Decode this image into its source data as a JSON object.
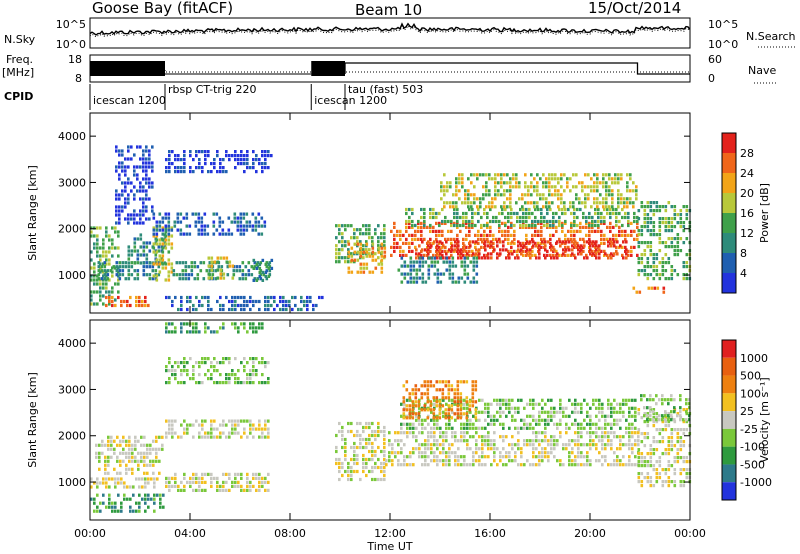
{
  "chart_data": {
    "type": "heatmap",
    "title": {
      "station": "Goose Bay (fitACF)",
      "beam": "Beam 10",
      "date": "15/Oct/2014"
    },
    "x_axis": {
      "label": "Time UT",
      "range_hours": [
        0,
        24
      ],
      "ticks": [
        {
          "value": 0,
          "label": "00:00"
        },
        {
          "value": 4,
          "label": "04:00"
        },
        {
          "value": 8,
          "label": "08:00"
        },
        {
          "value": 12,
          "label": "12:00"
        },
        {
          "value": 16,
          "label": "16:00"
        },
        {
          "value": 20,
          "label": "20:00"
        },
        {
          "value": 24,
          "label": "00:00"
        }
      ]
    },
    "noise_panel": {
      "left_label": "N.Sky",
      "right_label": "N.Search",
      "left_ticks": [
        "10^5",
        "10^0"
      ],
      "right_ticks": [
        "10^5",
        "10^0"
      ]
    },
    "freq_panel": {
      "left_label_line1": "Freq.",
      "left_label_line2": "[MHz]",
      "right_label": "Nave",
      "left_ticks": [
        "18",
        "8"
      ],
      "right_ticks": [
        "60",
        "0"
      ]
    },
    "cpid_panel": {
      "label": "CPID",
      "segments": [
        {
          "start": 0.0,
          "end": 3.0,
          "label": "icescan 1200"
        },
        {
          "start": 3.0,
          "end": 8.85,
          "label": "rbsp CT-trig 220"
        },
        {
          "start": 8.85,
          "end": 10.2,
          "label": "icescan 1200"
        },
        {
          "start": 10.2,
          "end": 24.0,
          "label": "tau (fast) 503"
        }
      ]
    },
    "panels": [
      {
        "name": "power",
        "ylabel": "Slant Range [km]",
        "ylim": [
          180,
          4500
        ],
        "yticks": [
          1000,
          2000,
          3000,
          4000
        ],
        "colorbar_label": "Power [dB]",
        "colorbar_ticks": [
          "4",
          "8",
          "12",
          "16",
          "20",
          "24",
          "28"
        ],
        "colors": [
          "#2233dd",
          "#1f5fb0",
          "#2e8b7a",
          "#3fa04a",
          "#b8c83a",
          "#f2a418",
          "#f0661a",
          "#e3221c"
        ]
      },
      {
        "name": "velocity",
        "ylabel": "Slant Range [km]",
        "ylim": [
          180,
          4500
        ],
        "yticks": [
          1000,
          2000,
          3000,
          4000
        ],
        "colorbar_label": "Velocity [m s⁻¹]",
        "colorbar_ticks": [
          "1000",
          "500",
          "100",
          "25",
          "-25",
          "-100",
          "-500",
          "-1000"
        ],
        "colors": [
          "#2233dd",
          "#2d7a8a",
          "#2e9a3e",
          "#7ac83a",
          "#c8c8c0",
          "#f2c020",
          "#ee8010",
          "#e86010",
          "#e02020"
        ]
      }
    ],
    "features": [
      {
        "panel": "power",
        "t0": 0.0,
        "t1": 1.2,
        "r0": 350,
        "r1": 2050,
        "level": 3
      },
      {
        "panel": "power",
        "t0": 0.3,
        "t1": 2.8,
        "r0": 900,
        "r1": 1300,
        "level": 2
      },
      {
        "panel": "power",
        "t0": 0.6,
        "t1": 2.6,
        "r0": 300,
        "r1": 550,
        "level": 6
      },
      {
        "panel": "power",
        "t0": 1.5,
        "t1": 3.0,
        "r0": 1200,
        "r1": 1900,
        "level": 2
      },
      {
        "panel": "power",
        "t0": 2.5,
        "t1": 3.3,
        "r0": 800,
        "r1": 2050,
        "level": 4
      },
      {
        "panel": "power",
        "t0": 1.0,
        "t1": 2.5,
        "r0": 2100,
        "r1": 3800,
        "level": 0
      },
      {
        "panel": "power",
        "t0": 2.5,
        "t1": 7.0,
        "r0": 1850,
        "r1": 2350,
        "level": 1
      },
      {
        "panel": "power",
        "t0": 3.3,
        "t1": 7.3,
        "r0": 900,
        "r1": 1300,
        "level": 2
      },
      {
        "panel": "power",
        "t0": 4.7,
        "t1": 5.8,
        "r0": 900,
        "r1": 1400,
        "level": 4
      },
      {
        "panel": "power",
        "t0": 6.5,
        "t1": 7.3,
        "r0": 850,
        "r1": 1350,
        "level": 2
      },
      {
        "panel": "power",
        "t0": 3.0,
        "t1": 7.3,
        "r0": 3200,
        "r1": 3700,
        "level": 0
      },
      {
        "panel": "power",
        "t0": 3.0,
        "t1": 9.3,
        "r0": 200,
        "r1": 550,
        "level": 1
      },
      {
        "panel": "power",
        "t0": 9.8,
        "t1": 11.8,
        "r0": 1200,
        "r1": 2100,
        "level": 3
      },
      {
        "panel": "power",
        "t0": 10.3,
        "t1": 11.8,
        "r0": 1000,
        "r1": 1700,
        "level": 5
      },
      {
        "panel": "power",
        "t0": 12.0,
        "t1": 21.9,
        "r0": 1350,
        "r1": 2150,
        "level": 6
      },
      {
        "panel": "power",
        "t0": 13.0,
        "t1": 21.5,
        "r0": 1350,
        "r1": 1750,
        "level": 7
      },
      {
        "panel": "power",
        "t0": 12.6,
        "t1": 21.9,
        "r0": 2000,
        "r1": 2450,
        "level": 3
      },
      {
        "panel": "power",
        "t0": 14.0,
        "t1": 21.9,
        "r0": 2400,
        "r1": 3200,
        "level": 4
      },
      {
        "panel": "power",
        "t0": 12.3,
        "t1": 15.5,
        "r0": 800,
        "r1": 1400,
        "level": 2
      },
      {
        "panel": "power",
        "t0": 21.9,
        "t1": 24.0,
        "r0": 900,
        "r1": 2600,
        "level": 3
      },
      {
        "panel": "power",
        "t0": 21.7,
        "t1": 23.0,
        "r0": 550,
        "r1": 750,
        "level": 6
      },
      {
        "panel": "velocity",
        "t0": 0.0,
        "t1": 2.8,
        "r0": 850,
        "r1": 1100,
        "level": 4
      },
      {
        "panel": "velocity",
        "t0": 0.0,
        "t1": 3.0,
        "r0": 300,
        "r1": 750,
        "level": 2
      },
      {
        "panel": "velocity",
        "t0": 0.2,
        "t1": 3.0,
        "r0": 1100,
        "r1": 2000,
        "level": 4
      },
      {
        "panel": "velocity",
        "t0": 3.0,
        "t1": 7.2,
        "r0": 800,
        "r1": 1200,
        "level": 4
      },
      {
        "panel": "velocity",
        "t0": 3.0,
        "t1": 7.2,
        "r0": 1950,
        "r1": 2350,
        "level": 4
      },
      {
        "panel": "velocity",
        "t0": 3.0,
        "t1": 7.2,
        "r0": 3100,
        "r1": 3700,
        "level": 3
      },
      {
        "panel": "velocity",
        "t0": 3.0,
        "t1": 7.0,
        "r0": 4200,
        "r1": 4450,
        "level": 2
      },
      {
        "panel": "velocity",
        "t0": 9.8,
        "t1": 11.8,
        "r0": 1000,
        "r1": 2300,
        "level": 4
      },
      {
        "panel": "velocity",
        "t0": 11.8,
        "t1": 22.0,
        "r0": 1300,
        "r1": 2100,
        "level": 4
      },
      {
        "panel": "velocity",
        "t0": 12.4,
        "t1": 21.9,
        "r0": 2100,
        "r1": 2800,
        "level": 3
      },
      {
        "panel": "velocity",
        "t0": 12.5,
        "t1": 15.5,
        "r0": 2300,
        "r1": 3200,
        "level": 6
      },
      {
        "panel": "velocity",
        "t0": 21.9,
        "t1": 24.0,
        "r0": 900,
        "r1": 2600,
        "level": 4
      },
      {
        "panel": "velocity",
        "t0": 22.0,
        "t1": 24.0,
        "r0": 2300,
        "r1": 2900,
        "level": 3
      }
    ]
  }
}
